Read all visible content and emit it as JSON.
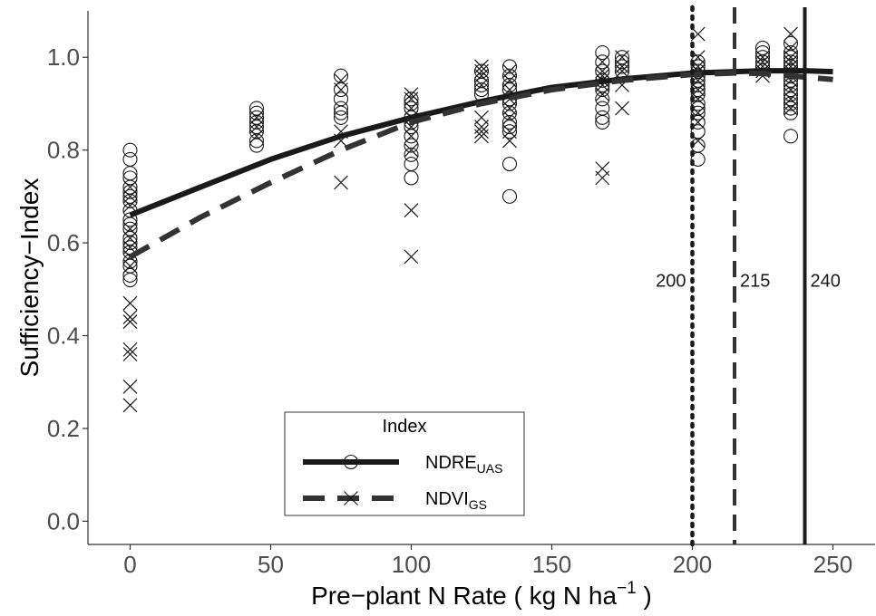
{
  "chart_data": {
    "type": "scatter",
    "title": "",
    "xlabel": "Pre−plant N Rate ( kg N ha",
    "xlabel_sup": "−1",
    "xlabel_end": " )",
    "ylabel": "Sufficiency−Index",
    "xlim": [
      -15,
      265
    ],
    "ylim": [
      -0.05,
      1.1
    ],
    "x_ticks": [
      0,
      50,
      100,
      150,
      200,
      250
    ],
    "x_tick_labels": [
      "0",
      "50",
      "100",
      "150",
      "200",
      "250"
    ],
    "y_ticks": [
      0.0,
      0.2,
      0.4,
      0.6,
      0.8,
      1.0
    ],
    "y_tick_labels": [
      "0.0",
      "0.2",
      "0.4",
      "0.6",
      "0.8",
      "1.0"
    ],
    "grid": false,
    "legend": {
      "title": "Index",
      "placement": "bottom-center",
      "entries": [
        {
          "label": "NDRE",
          "sub": "UAS",
          "marker": "circle",
          "line": "solid"
        },
        {
          "label": "NDVI",
          "sub": "GS",
          "marker": "x",
          "line": "dashed"
        }
      ]
    },
    "series": [
      {
        "name": "NDRE_UAS",
        "marker": "circle",
        "points": [
          [
            0,
            0.8
          ],
          [
            0,
            0.78
          ],
          [
            0,
            0.75
          ],
          [
            0,
            0.74
          ],
          [
            0,
            0.72
          ],
          [
            0,
            0.71
          ],
          [
            0,
            0.7
          ],
          [
            0,
            0.69
          ],
          [
            0,
            0.67
          ],
          [
            0,
            0.65
          ],
          [
            0,
            0.64
          ],
          [
            0,
            0.63
          ],
          [
            0,
            0.61
          ],
          [
            0,
            0.6
          ],
          [
            0,
            0.59
          ],
          [
            0,
            0.58
          ],
          [
            0,
            0.56
          ],
          [
            0,
            0.55
          ],
          [
            0,
            0.53
          ],
          [
            0,
            0.52
          ],
          [
            45,
            0.89
          ],
          [
            45,
            0.88
          ],
          [
            45,
            0.87
          ],
          [
            45,
            0.86
          ],
          [
            45,
            0.85
          ],
          [
            45,
            0.84
          ],
          [
            45,
            0.82
          ],
          [
            45,
            0.81
          ],
          [
            75,
            0.96
          ],
          [
            75,
            0.93
          ],
          [
            75,
            0.91
          ],
          [
            75,
            0.89
          ],
          [
            75,
            0.88
          ],
          [
            75,
            0.87
          ],
          [
            100,
            0.91
          ],
          [
            100,
            0.9
          ],
          [
            100,
            0.89
          ],
          [
            100,
            0.87
          ],
          [
            100,
            0.86
          ],
          [
            100,
            0.85
          ],
          [
            100,
            0.83
          ],
          [
            100,
            0.81
          ],
          [
            100,
            0.79
          ],
          [
            100,
            0.77
          ],
          [
            100,
            0.74
          ],
          [
            125,
            0.97
          ],
          [
            125,
            0.95
          ],
          [
            125,
            0.94
          ],
          [
            125,
            0.93
          ],
          [
            125,
            0.92
          ],
          [
            135,
            0.98
          ],
          [
            135,
            0.96
          ],
          [
            135,
            0.94
          ],
          [
            135,
            0.93
          ],
          [
            135,
            0.91
          ],
          [
            135,
            0.9
          ],
          [
            135,
            0.88
          ],
          [
            135,
            0.86
          ],
          [
            135,
            0.85
          ],
          [
            135,
            0.84
          ],
          [
            135,
            0.77
          ],
          [
            135,
            0.7
          ],
          [
            168,
            1.01
          ],
          [
            168,
            0.99
          ],
          [
            168,
            0.97
          ],
          [
            168,
            0.95
          ],
          [
            168,
            0.94
          ],
          [
            168,
            0.93
          ],
          [
            168,
            0.91
          ],
          [
            168,
            0.89
          ],
          [
            168,
            0.87
          ],
          [
            168,
            0.86
          ],
          [
            175,
            1.0
          ],
          [
            175,
            0.99
          ],
          [
            175,
            0.98
          ],
          [
            175,
            0.97
          ],
          [
            202,
            0.99
          ],
          [
            202,
            0.98
          ],
          [
            202,
            0.97
          ],
          [
            202,
            0.96
          ],
          [
            202,
            0.95
          ],
          [
            202,
            0.94
          ],
          [
            202,
            0.93
          ],
          [
            202,
            0.92
          ],
          [
            202,
            0.9
          ],
          [
            202,
            0.89
          ],
          [
            202,
            0.88
          ],
          [
            202,
            0.86
          ],
          [
            202,
            0.84
          ],
          [
            202,
            0.81
          ],
          [
            202,
            0.78
          ],
          [
            225,
            1.02
          ],
          [
            225,
            1.01
          ],
          [
            225,
            1.0
          ],
          [
            225,
            0.99
          ],
          [
            225,
            0.98
          ],
          [
            235,
            1.03
          ],
          [
            235,
            1.01
          ],
          [
            235,
            1.0
          ],
          [
            235,
            0.99
          ],
          [
            235,
            0.98
          ],
          [
            235,
            0.97
          ],
          [
            235,
            0.96
          ],
          [
            235,
            0.95
          ],
          [
            235,
            0.94
          ],
          [
            235,
            0.93
          ],
          [
            235,
            0.92
          ],
          [
            235,
            0.91
          ],
          [
            235,
            0.9
          ],
          [
            235,
            0.89
          ],
          [
            235,
            0.88
          ],
          [
            235,
            0.83
          ]
        ]
      },
      {
        "name": "NDVI_GS",
        "marker": "x",
        "points": [
          [
            0,
            0.72
          ],
          [
            0,
            0.7
          ],
          [
            0,
            0.68
          ],
          [
            0,
            0.63
          ],
          [
            0,
            0.61
          ],
          [
            0,
            0.59
          ],
          [
            0,
            0.57
          ],
          [
            0,
            0.55
          ],
          [
            0,
            0.47
          ],
          [
            0,
            0.44
          ],
          [
            0,
            0.43
          ],
          [
            0,
            0.37
          ],
          [
            0,
            0.36
          ],
          [
            0,
            0.29
          ],
          [
            0,
            0.25
          ],
          [
            45,
            0.87
          ],
          [
            45,
            0.85
          ],
          [
            45,
            0.83
          ],
          [
            75,
            0.95
          ],
          [
            75,
            0.93
          ],
          [
            75,
            0.84
          ],
          [
            75,
            0.82
          ],
          [
            75,
            0.73
          ],
          [
            100,
            0.92
          ],
          [
            100,
            0.91
          ],
          [
            100,
            0.89
          ],
          [
            100,
            0.87
          ],
          [
            100,
            0.85
          ],
          [
            100,
            0.83
          ],
          [
            100,
            0.8
          ],
          [
            100,
            0.67
          ],
          [
            100,
            0.57
          ],
          [
            125,
            0.98
          ],
          [
            125,
            0.97
          ],
          [
            125,
            0.96
          ],
          [
            125,
            0.94
          ],
          [
            125,
            0.87
          ],
          [
            125,
            0.85
          ],
          [
            125,
            0.84
          ],
          [
            125,
            0.83
          ],
          [
            135,
            0.97
          ],
          [
            135,
            0.95
          ],
          [
            135,
            0.93
          ],
          [
            135,
            0.91
          ],
          [
            135,
            0.89
          ],
          [
            135,
            0.87
          ],
          [
            135,
            0.84
          ],
          [
            135,
            0.82
          ],
          [
            168,
            0.99
          ],
          [
            168,
            0.97
          ],
          [
            168,
            0.96
          ],
          [
            168,
            0.95
          ],
          [
            168,
            0.94
          ],
          [
            168,
            0.92
          ],
          [
            168,
            0.76
          ],
          [
            168,
            0.74
          ],
          [
            175,
            1.0
          ],
          [
            175,
            0.98
          ],
          [
            175,
            0.97
          ],
          [
            175,
            0.94
          ],
          [
            175,
            0.89
          ],
          [
            202,
            1.05
          ],
          [
            202,
            1.0
          ],
          [
            202,
            0.98
          ],
          [
            202,
            0.97
          ],
          [
            202,
            0.95
          ],
          [
            202,
            0.93
          ],
          [
            202,
            0.91
          ],
          [
            202,
            0.88
          ],
          [
            202,
            0.86
          ],
          [
            202,
            0.82
          ],
          [
            225,
            1.0
          ],
          [
            225,
            0.99
          ],
          [
            225,
            0.98
          ],
          [
            225,
            0.97
          ],
          [
            225,
            0.96
          ],
          [
            235,
            1.05
          ],
          [
            235,
            1.02
          ],
          [
            235,
            1.0
          ],
          [
            235,
            0.99
          ],
          [
            235,
            0.98
          ],
          [
            235,
            0.97
          ],
          [
            235,
            0.95
          ],
          [
            235,
            0.93
          ],
          [
            235,
            0.91
          ],
          [
            235,
            0.89
          ]
        ]
      }
    ],
    "fit_curves": [
      {
        "name": "NDRE_UAS",
        "line": "solid",
        "x": [
          0,
          25,
          50,
          75,
          100,
          125,
          150,
          175,
          200,
          225,
          240,
          250
        ],
        "y": [
          0.66,
          0.72,
          0.78,
          0.83,
          0.87,
          0.905,
          0.935,
          0.953,
          0.966,
          0.971,
          0.971,
          0.969
        ]
      },
      {
        "name": "NDVI_GS",
        "line": "dashed",
        "x": [
          0,
          25,
          50,
          75,
          100,
          125,
          150,
          175,
          200,
          215,
          225,
          250
        ],
        "y": [
          0.57,
          0.655,
          0.73,
          0.8,
          0.86,
          0.9,
          0.93,
          0.95,
          0.963,
          0.966,
          0.965,
          0.952
        ]
      }
    ],
    "vertical_lines": [
      {
        "x": 200,
        "label": "200",
        "style": "dotted",
        "label_side": "left"
      },
      {
        "x": 215,
        "label": "215",
        "style": "dashed",
        "label_side": "right"
      },
      {
        "x": 240,
        "label": "240",
        "style": "solid",
        "label_side": "right"
      }
    ],
    "vline_label_y": 0.5
  },
  "colors": {
    "ink": "#1a1a1a",
    "dashed_curve": "#333333",
    "tick_text": "#4d4d4d",
    "background": "#ffffff"
  }
}
